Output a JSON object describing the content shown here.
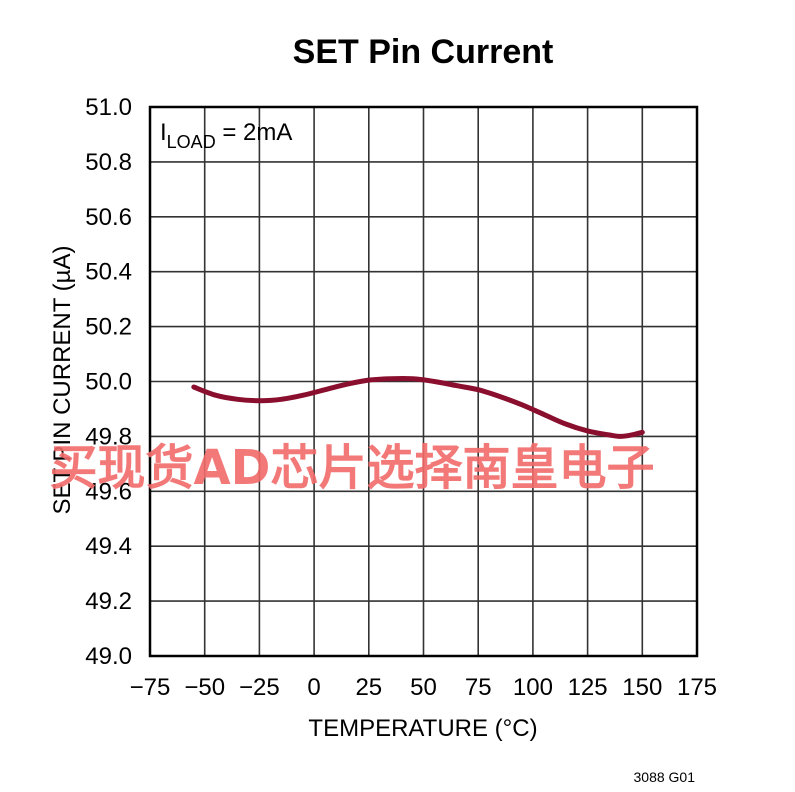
{
  "chart_data": {
    "type": "line",
    "title": "SET Pin Current",
    "xlabel": "TEMPERATURE (°C)",
    "ylabel": "SET PIN CURRENT (µA)",
    "xlim": [
      -75,
      175
    ],
    "ylim": [
      49.0,
      51.0
    ],
    "x_ticks": [
      "−75",
      "−50",
      "−25",
      "0",
      "25",
      "50",
      "75",
      "100",
      "125",
      "150",
      "175"
    ],
    "y_ticks": [
      "49.0",
      "49.2",
      "49.4",
      "49.6",
      "49.8",
      "50.0",
      "50.2",
      "50.4",
      "50.6",
      "50.8",
      "51.0"
    ],
    "grid": true,
    "annotation": {
      "main": "I",
      "sub": "LOAD",
      "rest": " = 2mA"
    },
    "series": [
      {
        "name": "",
        "color": "#8a0f2e",
        "x": [
          -55,
          -45,
          -35,
          -25,
          -15,
          -5,
          5,
          15,
          25,
          35,
          45,
          55,
          65,
          75,
          85,
          95,
          105,
          115,
          125,
          135,
          140,
          145,
          150
        ],
        "y": [
          49.98,
          49.95,
          49.935,
          49.93,
          49.935,
          49.95,
          49.97,
          49.99,
          50.005,
          50.01,
          50.01,
          50.0,
          49.985,
          49.97,
          49.945,
          49.915,
          49.88,
          49.845,
          49.82,
          49.805,
          49.8,
          49.805,
          49.815
        ]
      }
    ]
  },
  "figure_id": "3088 G01",
  "watermark": "买现货AD芯片选择南皇电子"
}
